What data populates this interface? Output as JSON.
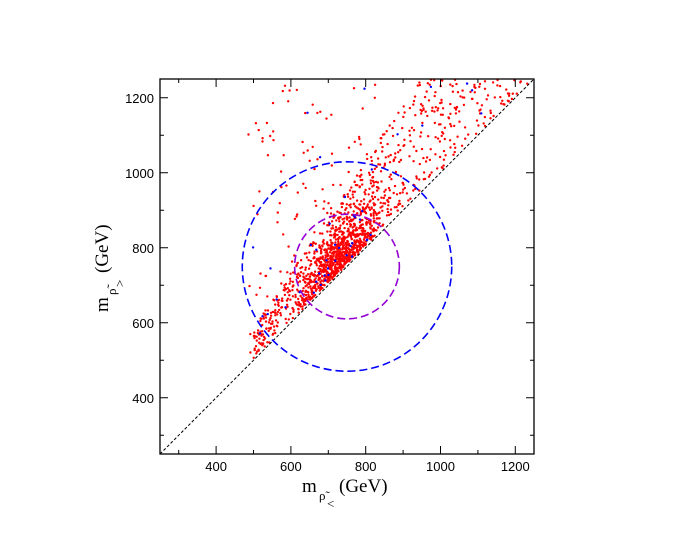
{
  "chart_data": {
    "type": "scatter",
    "title": "",
    "xlabel": {
      "base": "m",
      "subscript": "ρ̃",
      "sub_mark": "<",
      "unit": "(GeV)"
    },
    "ylabel": {
      "base": "m",
      "subscript": "ρ̃",
      "sub_mark": ">",
      "unit": "(GeV)"
    },
    "xlim": [
      250,
      1250
    ],
    "ylim": [
      250,
      1250
    ],
    "xticks": [
      400,
      600,
      800,
      1000,
      1200
    ],
    "yticks": [
      400,
      600,
      800,
      1000,
      1200
    ],
    "xtick_labels": [
      "400",
      "600",
      "800",
      "1000",
      "1200"
    ],
    "ytick_labels": [
      "400",
      "600",
      "800",
      "1000",
      "1200"
    ],
    "grid": false,
    "colors": {
      "red_points": "#ff0000",
      "blue_points": "#0000ff",
      "outer_circle": "#0000ff",
      "inner_circle": "#9400d3",
      "diagonal": "#000000"
    },
    "diagonal_line": {
      "from": [
        250,
        250
      ],
      "to": [
        1250,
        1250
      ],
      "style": "dashed"
    },
    "circles": [
      {
        "name": "outer",
        "center": [
          750,
          750
        ],
        "radius": 280,
        "style": "dashed"
      },
      {
        "name": "inner",
        "center": [
          750,
          750
        ],
        "radius": 140,
        "style": "dashed"
      }
    ],
    "series": [
      {
        "name": "red points",
        "color": "#ff0000",
        "count": 1500,
        "region": "y > x, x in [490, 1240], densest near (730, 770)"
      },
      {
        "name": "blue points",
        "color": "#0000ff",
        "count": 45,
        "region": "y > x, scattered among red points"
      }
    ]
  }
}
